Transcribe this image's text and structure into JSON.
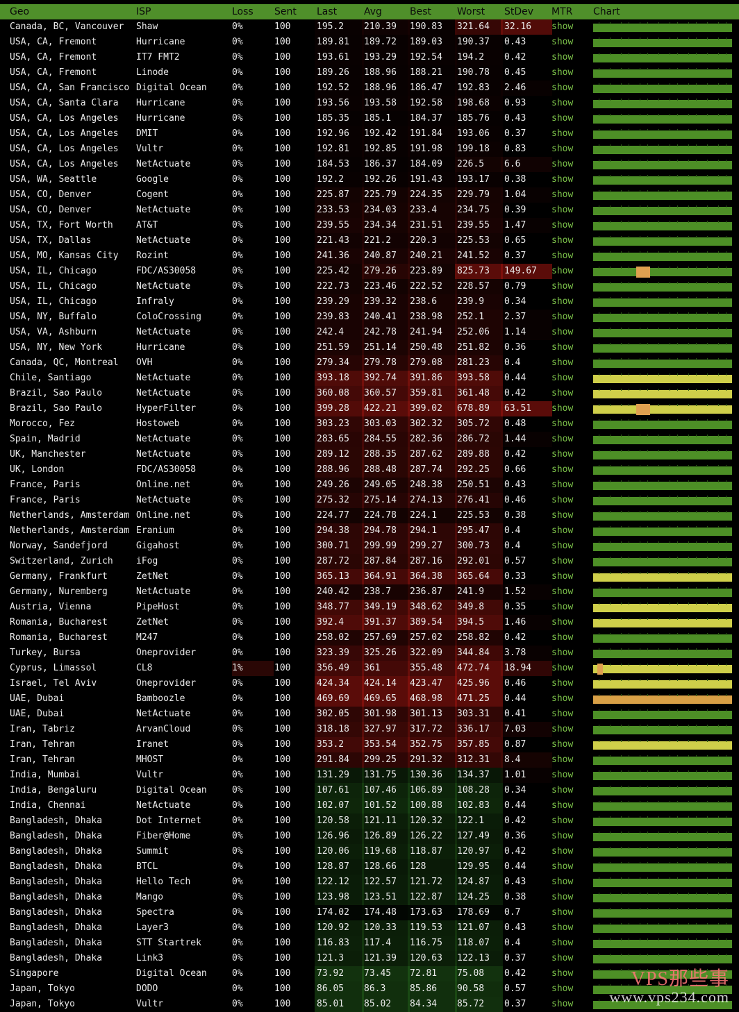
{
  "header": {
    "geo": "Geo",
    "isp": "ISP",
    "loss": "Loss",
    "sent": "Sent",
    "last": "Last",
    "avg": "Avg",
    "best": "Best",
    "worst": "Worst",
    "stdev": "StDev",
    "mtr": "MTR",
    "chart": "Chart"
  },
  "colors": {
    "header": "#4f8f2a",
    "good": "#4d8f26",
    "warn": "#cfcf4a",
    "bad": "#d9a046",
    "spike": "#e0a050",
    "link": "#7cc24a"
  },
  "rows": [
    {
      "geo": "Canada, BC, Vancouver",
      "isp": "Shaw",
      "loss": "0%",
      "sent": "100",
      "last": "195.2",
      "avg": "210.39",
      "best": "190.83",
      "worst": "321.64",
      "stdev": "32.16",
      "mtr": "show",
      "bar": "good"
    },
    {
      "geo": "USA, CA, Fremont",
      "isp": "Hurricane",
      "loss": "0%",
      "sent": "100",
      "last": "189.81",
      "avg": "189.72",
      "best": "189.03",
      "worst": "190.37",
      "stdev": "0.43",
      "mtr": "show",
      "bar": "good"
    },
    {
      "geo": "USA, CA, Fremont",
      "isp": "IT7 FMT2",
      "loss": "0%",
      "sent": "100",
      "last": "193.61",
      "avg": "193.29",
      "best": "192.54",
      "worst": "194.2",
      "stdev": "0.42",
      "mtr": "show",
      "bar": "good"
    },
    {
      "geo": "USA, CA, Fremont",
      "isp": "Linode",
      "loss": "0%",
      "sent": "100",
      "last": "189.26",
      "avg": "188.96",
      "best": "188.21",
      "worst": "190.78",
      "stdev": "0.45",
      "mtr": "show",
      "bar": "good"
    },
    {
      "geo": "USA, CA, San Francisco",
      "isp": "Digital Ocean",
      "loss": "0%",
      "sent": "100",
      "last": "192.52",
      "avg": "188.96",
      "best": "186.47",
      "worst": "192.83",
      "stdev": "2.46",
      "mtr": "show",
      "bar": "good"
    },
    {
      "geo": "USA, CA, Santa Clara",
      "isp": "Hurricane",
      "loss": "0%",
      "sent": "100",
      "last": "193.56",
      "avg": "193.58",
      "best": "192.58",
      "worst": "198.68",
      "stdev": "0.93",
      "mtr": "show",
      "bar": "good"
    },
    {
      "geo": "USA, CA, Los Angeles",
      "isp": "Hurricane",
      "loss": "0%",
      "sent": "100",
      "last": "185.35",
      "avg": "185.1",
      "best": "184.37",
      "worst": "185.76",
      "stdev": "0.43",
      "mtr": "show",
      "bar": "good"
    },
    {
      "geo": "USA, CA, Los Angeles",
      "isp": "DMIT",
      "loss": "0%",
      "sent": "100",
      "last": "192.96",
      "avg": "192.42",
      "best": "191.84",
      "worst": "193.06",
      "stdev": "0.37",
      "mtr": "show",
      "bar": "good"
    },
    {
      "geo": "USA, CA, Los Angeles",
      "isp": "Vultr",
      "loss": "0%",
      "sent": "100",
      "last": "192.81",
      "avg": "192.85",
      "best": "191.98",
      "worst": "199.18",
      "stdev": "0.83",
      "mtr": "show",
      "bar": "good"
    },
    {
      "geo": "USA, CA, Los Angeles",
      "isp": "NetActuate",
      "loss": "0%",
      "sent": "100",
      "last": "184.53",
      "avg": "186.37",
      "best": "184.09",
      "worst": "226.5",
      "stdev": "6.6",
      "mtr": "show",
      "bar": "good"
    },
    {
      "geo": "USA, WA, Seattle",
      "isp": "Google",
      "loss": "0%",
      "sent": "100",
      "last": "192.2",
      "avg": "192.26",
      "best": "191.43",
      "worst": "193.17",
      "stdev": "0.38",
      "mtr": "show",
      "bar": "good"
    },
    {
      "geo": "USA, CO, Denver",
      "isp": "Cogent",
      "loss": "0%",
      "sent": "100",
      "last": "225.87",
      "avg": "225.79",
      "best": "224.35",
      "worst": "229.79",
      "stdev": "1.04",
      "mtr": "show",
      "bar": "good"
    },
    {
      "geo": "USA, CO, Denver",
      "isp": "NetActuate",
      "loss": "0%",
      "sent": "100",
      "last": "233.53",
      "avg": "234.03",
      "best": "233.4",
      "worst": "234.75",
      "stdev": "0.39",
      "mtr": "show",
      "bar": "good"
    },
    {
      "geo": "USA, TX, Fort Worth",
      "isp": "AT&T",
      "loss": "0%",
      "sent": "100",
      "last": "239.55",
      "avg": "234.34",
      "best": "231.51",
      "worst": "239.55",
      "stdev": "1.47",
      "mtr": "show",
      "bar": "good"
    },
    {
      "geo": "USA, TX, Dallas",
      "isp": "NetActuate",
      "loss": "0%",
      "sent": "100",
      "last": "221.43",
      "avg": "221.2",
      "best": "220.3",
      "worst": "225.53",
      "stdev": "0.65",
      "mtr": "show",
      "bar": "good"
    },
    {
      "geo": "USA, MO, Kansas City",
      "isp": "Rozint",
      "loss": "0%",
      "sent": "100",
      "last": "241.36",
      "avg": "240.87",
      "best": "240.21",
      "worst": "241.52",
      "stdev": "0.37",
      "mtr": "show",
      "bar": "good"
    },
    {
      "geo": "USA, IL, Chicago",
      "isp": "FDC/AS30058",
      "loss": "0%",
      "sent": "100",
      "last": "225.42",
      "avg": "279.26",
      "best": "223.89",
      "worst": "825.73",
      "stdev": "149.67",
      "mtr": "show",
      "bar": "good",
      "spike": true
    },
    {
      "geo": "USA, IL, Chicago",
      "isp": "NetActuate",
      "loss": "0%",
      "sent": "100",
      "last": "222.73",
      "avg": "223.46",
      "best": "222.52",
      "worst": "228.57",
      "stdev": "0.79",
      "mtr": "show",
      "bar": "good"
    },
    {
      "geo": "USA, IL, Chicago",
      "isp": "Infraly",
      "loss": "0%",
      "sent": "100",
      "last": "239.29",
      "avg": "239.32",
      "best": "238.6",
      "worst": "239.9",
      "stdev": "0.34",
      "mtr": "show",
      "bar": "good"
    },
    {
      "geo": "USA, NY, Buffalo",
      "isp": "ColoCrossing",
      "loss": "0%",
      "sent": "100",
      "last": "239.83",
      "avg": "240.41",
      "best": "238.98",
      "worst": "252.1",
      "stdev": "2.37",
      "mtr": "show",
      "bar": "good"
    },
    {
      "geo": "USA, VA, Ashburn",
      "isp": "NetActuate",
      "loss": "0%",
      "sent": "100",
      "last": "242.4",
      "avg": "242.78",
      "best": "241.94",
      "worst": "252.06",
      "stdev": "1.14",
      "mtr": "show",
      "bar": "good"
    },
    {
      "geo": "USA, NY, New York",
      "isp": "Hurricane",
      "loss": "0%",
      "sent": "100",
      "last": "251.59",
      "avg": "251.14",
      "best": "250.48",
      "worst": "251.82",
      "stdev": "0.36",
      "mtr": "show",
      "bar": "good"
    },
    {
      "geo": "Canada, QC, Montreal",
      "isp": "OVH",
      "loss": "0%",
      "sent": "100",
      "last": "279.34",
      "avg": "279.78",
      "best": "279.08",
      "worst": "281.23",
      "stdev": "0.4",
      "mtr": "show",
      "bar": "good"
    },
    {
      "geo": "Chile, Santiago",
      "isp": "NetActuate",
      "loss": "0%",
      "sent": "100",
      "last": "393.18",
      "avg": "392.74",
      "best": "391.86",
      "worst": "393.58",
      "stdev": "0.44",
      "mtr": "show",
      "bar": "warn"
    },
    {
      "geo": "Brazil, Sao Paulo",
      "isp": "NetActuate",
      "loss": "0%",
      "sent": "100",
      "last": "360.08",
      "avg": "360.57",
      "best": "359.81",
      "worst": "361.48",
      "stdev": "0.42",
      "mtr": "show",
      "bar": "warn"
    },
    {
      "geo": "Brazil, Sao Paulo",
      "isp": "HyperFilter",
      "loss": "0%",
      "sent": "100",
      "last": "399.28",
      "avg": "422.21",
      "best": "399.02",
      "worst": "678.89",
      "stdev": "63.51",
      "mtr": "show",
      "bar": "warn",
      "spike": true
    },
    {
      "geo": "Morocco, Fez",
      "isp": "Hostoweb",
      "loss": "0%",
      "sent": "100",
      "last": "303.23",
      "avg": "303.03",
      "best": "302.32",
      "worst": "305.72",
      "stdev": "0.48",
      "mtr": "show",
      "bar": "good"
    },
    {
      "geo": "Spain, Madrid",
      "isp": "NetActuate",
      "loss": "0%",
      "sent": "100",
      "last": "283.65",
      "avg": "284.55",
      "best": "282.36",
      "worst": "286.72",
      "stdev": "1.44",
      "mtr": "show",
      "bar": "good"
    },
    {
      "geo": "UK, Manchester",
      "isp": "NetActuate",
      "loss": "0%",
      "sent": "100",
      "last": "289.12",
      "avg": "288.35",
      "best": "287.62",
      "worst": "289.88",
      "stdev": "0.42",
      "mtr": "show",
      "bar": "good"
    },
    {
      "geo": "UK, London",
      "isp": "FDC/AS30058",
      "loss": "0%",
      "sent": "100",
      "last": "288.96",
      "avg": "288.48",
      "best": "287.74",
      "worst": "292.25",
      "stdev": "0.66",
      "mtr": "show",
      "bar": "good"
    },
    {
      "geo": "France, Paris",
      "isp": "Online.net",
      "loss": "0%",
      "sent": "100",
      "last": "249.26",
      "avg": "249.05",
      "best": "248.38",
      "worst": "250.51",
      "stdev": "0.43",
      "mtr": "show",
      "bar": "good"
    },
    {
      "geo": "France, Paris",
      "isp": "NetActuate",
      "loss": "0%",
      "sent": "100",
      "last": "275.32",
      "avg": "275.14",
      "best": "274.13",
      "worst": "276.41",
      "stdev": "0.46",
      "mtr": "show",
      "bar": "good"
    },
    {
      "geo": "Netherlands, Amsterdam",
      "isp": "Online.net",
      "loss": "0%",
      "sent": "100",
      "last": "224.77",
      "avg": "224.78",
      "best": "224.1",
      "worst": "225.53",
      "stdev": "0.38",
      "mtr": "show",
      "bar": "good"
    },
    {
      "geo": "Netherlands, Amsterdam",
      "isp": "Eranium",
      "loss": "0%",
      "sent": "100",
      "last": "294.38",
      "avg": "294.78",
      "best": "294.1",
      "worst": "295.47",
      "stdev": "0.4",
      "mtr": "show",
      "bar": "good"
    },
    {
      "geo": "Norway, Sandefjord",
      "isp": "Gigahost",
      "loss": "0%",
      "sent": "100",
      "last": "300.71",
      "avg": "299.99",
      "best": "299.27",
      "worst": "300.73",
      "stdev": "0.4",
      "mtr": "show",
      "bar": "good"
    },
    {
      "geo": "Switzerland, Zurich",
      "isp": "iFog",
      "loss": "0%",
      "sent": "100",
      "last": "287.72",
      "avg": "287.84",
      "best": "287.16",
      "worst": "292.01",
      "stdev": "0.57",
      "mtr": "show",
      "bar": "good"
    },
    {
      "geo": "Germany, Frankfurt",
      "isp": "ZetNet",
      "loss": "0%",
      "sent": "100",
      "last": "365.13",
      "avg": "364.91",
      "best": "364.38",
      "worst": "365.64",
      "stdev": "0.33",
      "mtr": "show",
      "bar": "warn"
    },
    {
      "geo": "Germany, Nuremberg",
      "isp": "NetActuate",
      "loss": "0%",
      "sent": "100",
      "last": "240.42",
      "avg": "238.7",
      "best": "236.87",
      "worst": "241.9",
      "stdev": "1.52",
      "mtr": "show",
      "bar": "good"
    },
    {
      "geo": "Austria, Vienna",
      "isp": "PipeHost",
      "loss": "0%",
      "sent": "100",
      "last": "348.77",
      "avg": "349.19",
      "best": "348.62",
      "worst": "349.8",
      "stdev": "0.35",
      "mtr": "show",
      "bar": "warn"
    },
    {
      "geo": "Romania, Bucharest",
      "isp": "ZetNet",
      "loss": "0%",
      "sent": "100",
      "last": "392.4",
      "avg": "391.37",
      "best": "389.54",
      "worst": "394.5",
      "stdev": "1.46",
      "mtr": "show",
      "bar": "warn"
    },
    {
      "geo": "Romania, Bucharest",
      "isp": "M247",
      "loss": "0%",
      "sent": "100",
      "last": "258.02",
      "avg": "257.69",
      "best": "257.02",
      "worst": "258.82",
      "stdev": "0.42",
      "mtr": "show",
      "bar": "good"
    },
    {
      "geo": "Turkey, Bursa",
      "isp": "Oneprovider",
      "loss": "0%",
      "sent": "100",
      "last": "323.39",
      "avg": "325.26",
      "best": "322.09",
      "worst": "344.84",
      "stdev": "3.78",
      "mtr": "show",
      "bar": "good"
    },
    {
      "geo": "Cyprus, Limassol",
      "isp": "CL8",
      "loss": "1%",
      "sent": "100",
      "last": "356.49",
      "avg": "361",
      "best": "355.48",
      "worst": "472.74",
      "stdev": "18.94",
      "mtr": "show",
      "bar": "warn",
      "spike": true
    },
    {
      "geo": "Israel, Tel Aviv",
      "isp": "Oneprovider",
      "loss": "0%",
      "sent": "100",
      "last": "424.34",
      "avg": "424.14",
      "best": "423.47",
      "worst": "425.96",
      "stdev": "0.46",
      "mtr": "show",
      "bar": "warn"
    },
    {
      "geo": "UAE, Dubai",
      "isp": "Bamboozle",
      "loss": "0%",
      "sent": "100",
      "last": "469.69",
      "avg": "469.65",
      "best": "468.98",
      "worst": "471.25",
      "stdev": "0.44",
      "mtr": "show",
      "bar": "bad"
    },
    {
      "geo": "UAE, Dubai",
      "isp": "NetActuate",
      "loss": "0%",
      "sent": "100",
      "last": "302.05",
      "avg": "301.98",
      "best": "301.13",
      "worst": "303.31",
      "stdev": "0.41",
      "mtr": "show",
      "bar": "good"
    },
    {
      "geo": "Iran, Tabriz",
      "isp": "ArvanCloud",
      "loss": "0%",
      "sent": "100",
      "last": "318.18",
      "avg": "327.97",
      "best": "317.72",
      "worst": "336.17",
      "stdev": "7.03",
      "mtr": "show",
      "bar": "good"
    },
    {
      "geo": "Iran, Tehran",
      "isp": "Iranet",
      "loss": "0%",
      "sent": "100",
      "last": "353.2",
      "avg": "353.54",
      "best": "352.75",
      "worst": "357.85",
      "stdev": "0.87",
      "mtr": "show",
      "bar": "warn"
    },
    {
      "geo": "Iran, Tehran",
      "isp": "MHOST",
      "loss": "0%",
      "sent": "100",
      "last": "291.84",
      "avg": "299.25",
      "best": "291.32",
      "worst": "312.31",
      "stdev": "8.4",
      "mtr": "show",
      "bar": "good"
    },
    {
      "geo": "India, Mumbai",
      "isp": "Vultr",
      "loss": "0%",
      "sent": "100",
      "last": "131.29",
      "avg": "131.75",
      "best": "130.36",
      "worst": "134.37",
      "stdev": "1.01",
      "mtr": "show",
      "bar": "good"
    },
    {
      "geo": "India, Bengaluru",
      "isp": "Digital Ocean",
      "loss": "0%",
      "sent": "100",
      "last": "107.61",
      "avg": "107.46",
      "best": "106.89",
      "worst": "108.28",
      "stdev": "0.34",
      "mtr": "show",
      "bar": "good"
    },
    {
      "geo": "India, Chennai",
      "isp": "NetActuate",
      "loss": "0%",
      "sent": "100",
      "last": "102.07",
      "avg": "101.52",
      "best": "100.88",
      "worst": "102.83",
      "stdev": "0.44",
      "mtr": "show",
      "bar": "good"
    },
    {
      "geo": "Bangladesh, Dhaka",
      "isp": "Dot Internet",
      "loss": "0%",
      "sent": "100",
      "last": "120.58",
      "avg": "121.11",
      "best": "120.32",
      "worst": "122.1",
      "stdev": "0.42",
      "mtr": "show",
      "bar": "good"
    },
    {
      "geo": "Bangladesh, Dhaka",
      "isp": "Fiber@Home",
      "loss": "0%",
      "sent": "100",
      "last": "126.96",
      "avg": "126.89",
      "best": "126.22",
      "worst": "127.49",
      "stdev": "0.36",
      "mtr": "show",
      "bar": "good"
    },
    {
      "geo": "Bangladesh, Dhaka",
      "isp": "Summit",
      "loss": "0%",
      "sent": "100",
      "last": "120.06",
      "avg": "119.68",
      "best": "118.87",
      "worst": "120.97",
      "stdev": "0.42",
      "mtr": "show",
      "bar": "good"
    },
    {
      "geo": "Bangladesh, Dhaka",
      "isp": "BTCL",
      "loss": "0%",
      "sent": "100",
      "last": "128.87",
      "avg": "128.66",
      "best": "128",
      "worst": "129.95",
      "stdev": "0.44",
      "mtr": "show",
      "bar": "good"
    },
    {
      "geo": "Bangladesh, Dhaka",
      "isp": "Hello Tech",
      "loss": "0%",
      "sent": "100",
      "last": "122.12",
      "avg": "122.57",
      "best": "121.72",
      "worst": "124.87",
      "stdev": "0.43",
      "mtr": "show",
      "bar": "good"
    },
    {
      "geo": "Bangladesh, Dhaka",
      "isp": "Mango",
      "loss": "0%",
      "sent": "100",
      "last": "123.98",
      "avg": "123.51",
      "best": "122.87",
      "worst": "124.25",
      "stdev": "0.38",
      "mtr": "show",
      "bar": "good"
    },
    {
      "geo": "Bangladesh, Dhaka",
      "isp": "Spectra",
      "loss": "0%",
      "sent": "100",
      "last": "174.02",
      "avg": "174.48",
      "best": "173.63",
      "worst": "178.69",
      "stdev": "0.7",
      "mtr": "show",
      "bar": "good"
    },
    {
      "geo": "Bangladesh, Dhaka",
      "isp": "Layer3",
      "loss": "0%",
      "sent": "100",
      "last": "120.92",
      "avg": "120.33",
      "best": "119.53",
      "worst": "121.07",
      "stdev": "0.43",
      "mtr": "show",
      "bar": "good"
    },
    {
      "geo": "Bangladesh, Dhaka",
      "isp": "STT Startrek",
      "loss": "0%",
      "sent": "100",
      "last": "116.83",
      "avg": "117.4",
      "best": "116.75",
      "worst": "118.07",
      "stdev": "0.4",
      "mtr": "show",
      "bar": "good"
    },
    {
      "geo": "Bangladesh, Dhaka",
      "isp": "Link3",
      "loss": "0%",
      "sent": "100",
      "last": "121.3",
      "avg": "121.39",
      "best": "120.63",
      "worst": "122.13",
      "stdev": "0.37",
      "mtr": "show",
      "bar": "good"
    },
    {
      "geo": "Singapore",
      "isp": "Digital Ocean",
      "loss": "0%",
      "sent": "100",
      "last": "73.92",
      "avg": "73.45",
      "best": "72.81",
      "worst": "75.08",
      "stdev": "0.42",
      "mtr": "show",
      "bar": "good"
    },
    {
      "geo": "Japan, Tokyo",
      "isp": "DODO",
      "loss": "0%",
      "sent": "100",
      "last": "86.05",
      "avg": "86.3",
      "best": "85.86",
      "worst": "90.58",
      "stdev": "0.57",
      "mtr": "show",
      "bar": "good"
    },
    {
      "geo": "Japan, Tokyo",
      "isp": "Vultr",
      "loss": "0%",
      "sent": "100",
      "last": "85.01",
      "avg": "85.02",
      "best": "84.34",
      "worst": "85.72",
      "stdev": "0.37",
      "mtr": "show",
      "bar": "good"
    }
  ],
  "watermark": {
    "line1": "VPS那些事",
    "line2": "www.vps234.com"
  }
}
